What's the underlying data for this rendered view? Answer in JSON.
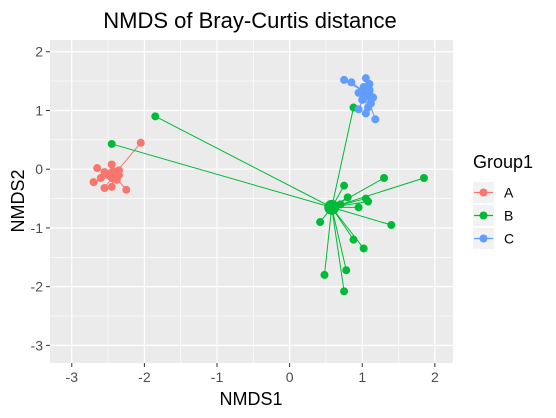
{
  "chart_data": {
    "type": "scatter",
    "title": "NMDS of Bray-Curtis distance",
    "xlabel": "NMDS1",
    "ylabel": "NMDS2",
    "xlim": [
      -3.3,
      2.25
    ],
    "ylim": [
      -3.3,
      2.2
    ],
    "x_ticks": [
      -3,
      -2,
      -1,
      0,
      1,
      2
    ],
    "y_ticks": [
      -3,
      -2,
      -1,
      0,
      1,
      2
    ],
    "x_tick_labels": [
      "-3",
      "-2",
      "-1",
      "0",
      "1",
      "2"
    ],
    "y_tick_labels": [
      "-3",
      "-2",
      "-1",
      "0",
      "1",
      "2"
    ],
    "grid": true,
    "background": "#ebebeb",
    "legend": {
      "title": "Group1",
      "position": "right"
    },
    "series": [
      {
        "name": "A",
        "color": "#F8766D",
        "centroid": [
          -2.42,
          -0.1
        ],
        "points": [
          [
            -2.05,
            0.45
          ],
          [
            -2.45,
            0.08
          ],
          [
            -2.65,
            0.02
          ],
          [
            -2.35,
            -0.02
          ],
          [
            -2.55,
            -0.05
          ],
          [
            -2.4,
            -0.07
          ],
          [
            -2.5,
            -0.1
          ],
          [
            -2.35,
            -0.1
          ],
          [
            -2.45,
            -0.12
          ],
          [
            -2.6,
            -0.15
          ],
          [
            -2.38,
            -0.18
          ],
          [
            -2.7,
            -0.22
          ],
          [
            -2.45,
            -0.3
          ],
          [
            -2.25,
            -0.35
          ],
          [
            -2.55,
            -0.32
          ]
        ]
      },
      {
        "name": "B",
        "color": "#00BA38",
        "centroid": [
          0.58,
          -0.65
        ],
        "points": [
          [
            -1.85,
            0.9
          ],
          [
            -2.45,
            0.43
          ],
          [
            0.88,
            1.05
          ],
          [
            1.3,
            -0.15
          ],
          [
            1.85,
            -0.15
          ],
          [
            0.75,
            -0.28
          ],
          [
            0.8,
            -0.48
          ],
          [
            1.05,
            -0.5
          ],
          [
            1.08,
            -0.55
          ],
          [
            0.7,
            -0.6
          ],
          [
            0.95,
            -0.65
          ],
          [
            0.42,
            -0.9
          ],
          [
            1.4,
            -0.95
          ],
          [
            0.88,
            -1.2
          ],
          [
            1.02,
            -1.35
          ],
          [
            0.78,
            -1.72
          ],
          [
            0.48,
            -1.8
          ],
          [
            0.75,
            -2.08
          ]
        ]
      },
      {
        "name": "C",
        "color": "#619CFF",
        "centroid": [
          1.05,
          1.3
        ],
        "points": [
          [
            1.05,
            1.55
          ],
          [
            0.75,
            1.52
          ],
          [
            0.85,
            1.48
          ],
          [
            1.1,
            1.45
          ],
          [
            1.02,
            1.4
          ],
          [
            1.1,
            1.35
          ],
          [
            0.95,
            1.3
          ],
          [
            1.08,
            1.25
          ],
          [
            1.15,
            1.22
          ],
          [
            1.0,
            1.18
          ],
          [
            1.12,
            1.12
          ],
          [
            1.08,
            1.05
          ],
          [
            0.95,
            1.02
          ],
          [
            1.05,
            0.95
          ],
          [
            1.18,
            0.85
          ]
        ]
      }
    ]
  }
}
